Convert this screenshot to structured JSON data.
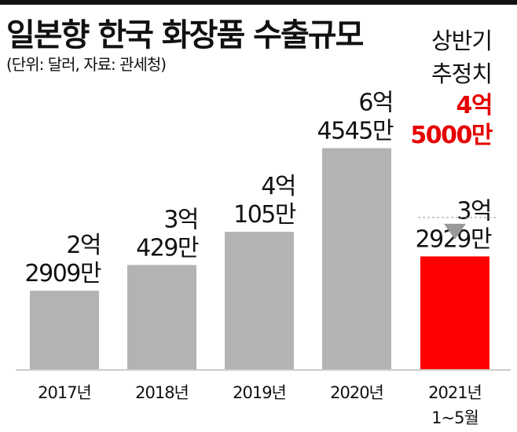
{
  "title": "일본향 한국 화장품 수출규모",
  "source": "(단위: 달러, 자료: 관세청)",
  "colors": {
    "bar": "#b3b3b3",
    "highlight_bar": "#ff0000",
    "estimate_text": "#e60000",
    "axis": "#999999",
    "text": "#111111"
  },
  "chart_data": {
    "type": "bar",
    "title": "일본향 한국 화장품 수출규모",
    "unit_note": "(단위: 달러, 자료: 관세청)",
    "xlabel": "",
    "ylabel": "",
    "categories": [
      [
        "2017년"
      ],
      [
        "2018년"
      ],
      [
        "2019년"
      ],
      [
        "2020년"
      ],
      [
        "2021년",
        "1~5월"
      ]
    ],
    "values": [
      229090000,
      304290000,
      401050000,
      645450000,
      329290000
    ],
    "value_labels": [
      [
        "2억",
        "2909만"
      ],
      [
        "3억",
        "429만"
      ],
      [
        "4억",
        "105만"
      ],
      [
        "6억",
        "4545만"
      ],
      [
        "3억",
        "2929만"
      ]
    ],
    "highlight_index": 4,
    "ylim": [
      0,
      780000000
    ],
    "grid": false,
    "annotation": {
      "label_lines": [
        "상반기",
        "추정치"
      ],
      "value_lines": [
        "4억",
        "5000만"
      ],
      "value": 450000000,
      "category_index": 4
    }
  }
}
